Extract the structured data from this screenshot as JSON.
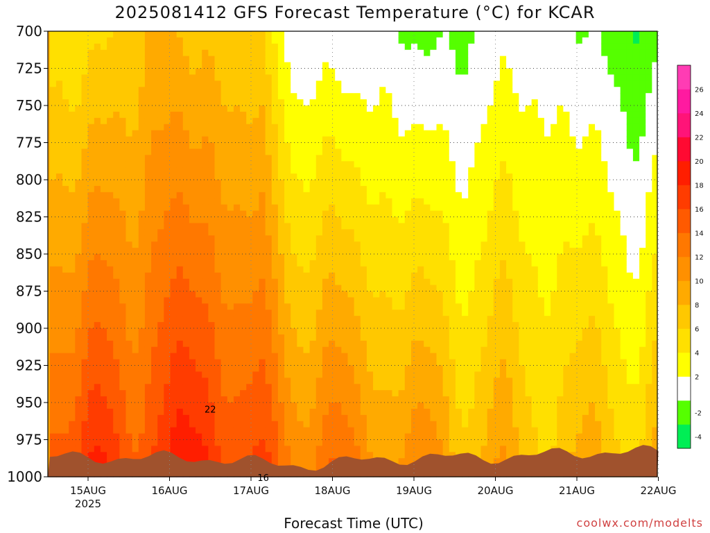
{
  "chart_data": {
    "type": "heatmap",
    "title": "2025081412 GFS Forecast Temperature (°C) for KCAR",
    "xlabel": "Forecast Time (UTC)",
    "ylabel": "",
    "credit": "coolwx.com/modelts",
    "y_axis": {
      "ticks": [
        700,
        725,
        750,
        775,
        800,
        825,
        850,
        875,
        900,
        925,
        950,
        975,
        1000
      ],
      "range": [
        700,
        1000
      ],
      "inverted": true
    },
    "x_axis": {
      "ticks": [
        "15AUG",
        "16AUG",
        "17AUG",
        "18AUG",
        "19AUG",
        "20AUG",
        "21AUG",
        "22AUG"
      ],
      "year_label": "2025",
      "range_days": [
        -0.47,
        7.0
      ]
    },
    "colorbar": {
      "levels": [
        -4,
        -2,
        0,
        2,
        4,
        6,
        8,
        10,
        12,
        14,
        16,
        18,
        20,
        22,
        24,
        26
      ],
      "colors": [
        "#00ee55",
        "#55ff00",
        "#ffffff",
        "#ffff00",
        "#ffe000",
        "#ffc800",
        "#ffaa00",
        "#ff9000",
        "#ff7800",
        "#ff5a00",
        "#ff3c00",
        "#ff1e00",
        "#ff0a32",
        "#ff1478",
        "#ff1aa0",
        "#ff3cb4"
      ],
      "labels": [
        "-4",
        "-2",
        "2",
        "4",
        "6",
        "8",
        "10",
        "12",
        "14",
        "16",
        "18",
        "20",
        "22",
        "24",
        "26"
      ]
    },
    "grid": true,
    "legend": "right",
    "ground_color": "#a0522d",
    "contour_labels": [
      {
        "t": 2.15,
        "p": 1001,
        "v": "16"
      },
      {
        "t": 1.5,
        "p": 955,
        "v": "22"
      }
    ]
  }
}
